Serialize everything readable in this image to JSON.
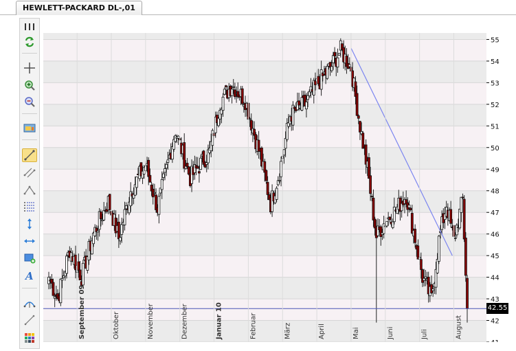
{
  "tab": {
    "label": "HEWLETT-PACKARD DL-,01"
  },
  "toolbar": {
    "items": [
      {
        "name": "panel-grip-icon"
      },
      {
        "name": "refresh-icon"
      },
      {
        "name": "crosshair-icon"
      },
      {
        "name": "zoom-in-icon"
      },
      {
        "name": "zoom-out-icon"
      },
      {
        "name": "chart-properties-icon"
      },
      {
        "name": "trendline-tool-icon",
        "active": true
      },
      {
        "name": "channel-tool-icon"
      },
      {
        "name": "polyline-tool-icon"
      },
      {
        "name": "fibonacci-tool-icon"
      },
      {
        "name": "vertical-line-tool-icon"
      },
      {
        "name": "horizontal-line-tool-icon"
      },
      {
        "name": "rectangle-tool-icon"
      },
      {
        "name": "text-tool-icon"
      },
      {
        "name": "arc-tool-icon"
      },
      {
        "name": "line-tool-icon"
      },
      {
        "name": "color-picker-icon"
      }
    ]
  },
  "price_tag": {
    "value": "42.55"
  },
  "colors": {
    "bull": "#ffffff",
    "bear": "#8b0000",
    "trendline": "#7b85f0",
    "support": "#4a55b5",
    "band_light": "#f7f1f4",
    "band_dark": "#ebebeb"
  },
  "chart_data": {
    "type": "candlestick",
    "ylim": [
      41,
      55.3
    ],
    "yticks": [
      41,
      42,
      43,
      44,
      45,
      46,
      47,
      48,
      49,
      50,
      51,
      52,
      53,
      54,
      55
    ],
    "months": [
      {
        "label": "September 09",
        "bold": true
      },
      {
        "label": "Oktober",
        "bold": false
      },
      {
        "label": "November",
        "bold": false
      },
      {
        "label": "Dezember",
        "bold": false
      },
      {
        "label": "Januar 10",
        "bold": true
      },
      {
        "label": "Februar",
        "bold": false
      },
      {
        "label": "März",
        "bold": false
      },
      {
        "label": "April",
        "bold": false
      },
      {
        "label": "Mai",
        "bold": false
      },
      {
        "label": "Juni",
        "bold": false
      },
      {
        "label": "Juli",
        "bold": false
      },
      {
        "label": "August",
        "bold": false
      }
    ],
    "anchors": [
      [
        0,
        44.0
      ],
      [
        6,
        43.0
      ],
      [
        14,
        45.3
      ],
      [
        22,
        44.0
      ],
      [
        30,
        46.0
      ],
      [
        40,
        47.5
      ],
      [
        47,
        45.8
      ],
      [
        55,
        48.0
      ],
      [
        65,
        49.2
      ],
      [
        73,
        47.2
      ],
      [
        85,
        50.8
      ],
      [
        95,
        48.6
      ],
      [
        108,
        49.8
      ],
      [
        115,
        52.1
      ],
      [
        123,
        52.9
      ],
      [
        132,
        52.2
      ],
      [
        142,
        49.6
      ],
      [
        149,
        47.4
      ],
      [
        155,
        48.9
      ],
      [
        162,
        51.5
      ],
      [
        172,
        52.0
      ],
      [
        181,
        53.0
      ],
      [
        190,
        53.8
      ],
      [
        196,
        54.5
      ],
      [
        203,
        53.7
      ],
      [
        209,
        51.0
      ],
      [
        214,
        49.0
      ],
      [
        220,
        45.9
      ],
      [
        226,
        46.6
      ],
      [
        233,
        47.1
      ],
      [
        240,
        47.8
      ],
      [
        246,
        45.8
      ],
      [
        251,
        44.0
      ],
      [
        257,
        43.0
      ],
      [
        262,
        45.7
      ],
      [
        267,
        47.4
      ],
      [
        272,
        45.7
      ],
      [
        278,
        47.6
      ],
      [
        281,
        42.55
      ]
    ],
    "trendline": {
      "from": [
        203,
        54.6
      ],
      "to": [
        271,
        45.0
      ]
    },
    "support_level": 42.55
  }
}
